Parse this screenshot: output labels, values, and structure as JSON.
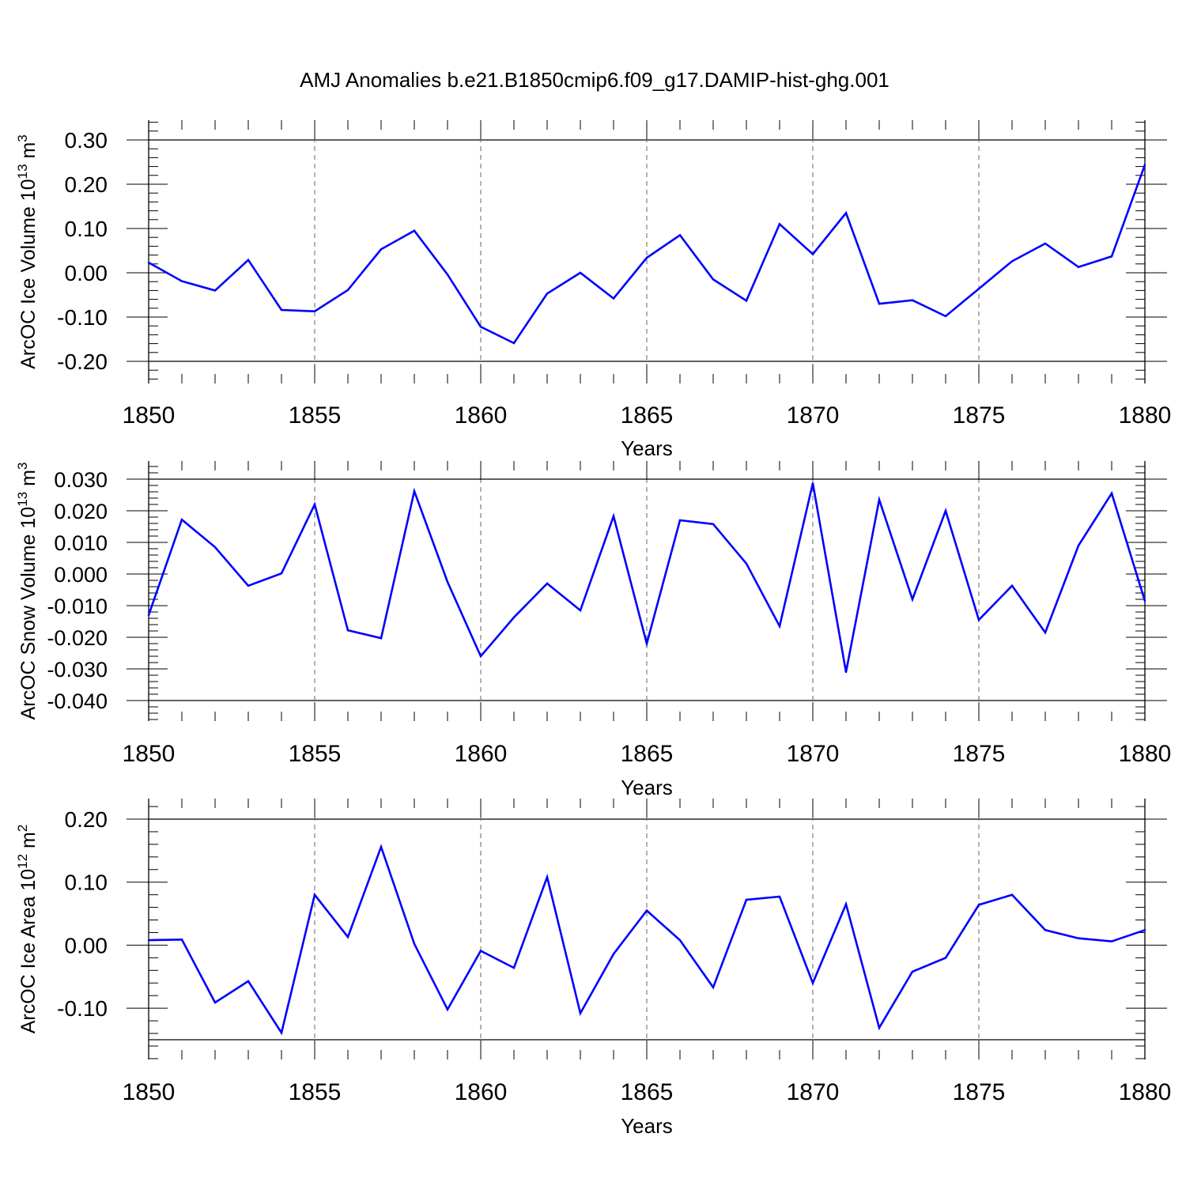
{
  "title": "AMJ Anomalies b.e21.B1850cmip6.f09_g17.DAMIP-hist-ghg.001",
  "line_color": "#0000ff",
  "chart_data": [
    {
      "type": "line",
      "ylabel": "ArcOC Ice Volume 10",
      "ylabel_exp": "13",
      "ylabel_unit": " m",
      "ylabel_unit_exp": "3",
      "xlabel": "Years",
      "xlim": [
        1850,
        1880
      ],
      "ylim": [
        -0.2,
        0.3
      ],
      "yticks": [
        -0.2,
        -0.1,
        0.0,
        0.1,
        0.2,
        0.3
      ],
      "ytick_labels": [
        "-0.20",
        "-0.10",
        "0.00",
        "0.10",
        "0.20",
        "0.30"
      ],
      "xticks": [
        1850,
        1855,
        1860,
        1865,
        1870,
        1875,
        1880
      ],
      "xtick_labels": [
        "1850",
        "1855",
        "1860",
        "1865",
        "1870",
        "1875",
        "1880"
      ],
      "x": [
        1850,
        1851,
        1852,
        1853,
        1854,
        1855,
        1856,
        1857,
        1858,
        1859,
        1860,
        1861,
        1862,
        1863,
        1864,
        1865,
        1866,
        1867,
        1868,
        1869,
        1870,
        1871,
        1872,
        1873,
        1874,
        1875,
        1876,
        1877,
        1878,
        1879,
        1880
      ],
      "values": [
        0.023,
        -0.019,
        -0.04,
        0.029,
        -0.084,
        -0.087,
        -0.039,
        0.053,
        0.095,
        -0.004,
        -0.122,
        -0.159,
        -0.047,
        0.0,
        -0.058,
        0.034,
        0.085,
        -0.015,
        -0.063,
        0.11,
        0.042,
        0.135,
        -0.07,
        -0.062,
        -0.098,
        -0.036,
        0.026,
        0.066,
        0.013,
        0.037,
        0.244
      ]
    },
    {
      "type": "line",
      "ylabel": "ArcOC Snow Volume 10",
      "ylabel_exp": "13",
      "ylabel_unit": " m",
      "ylabel_unit_exp": "3",
      "xlabel": "Years",
      "xlim": [
        1850,
        1880
      ],
      "ylim": [
        -0.04,
        0.03
      ],
      "yticks": [
        -0.04,
        -0.03,
        -0.02,
        -0.01,
        0.0,
        0.01,
        0.02,
        0.03
      ],
      "ytick_labels": [
        "-0.040",
        "-0.030",
        "-0.020",
        "-0.010",
        "0.000",
        "0.010",
        "0.020",
        "0.030"
      ],
      "xticks": [
        1850,
        1855,
        1860,
        1865,
        1870,
        1875,
        1880
      ],
      "xtick_labels": [
        "1850",
        "1855",
        "1860",
        "1865",
        "1870",
        "1875",
        "1880"
      ],
      "x": [
        1850,
        1851,
        1852,
        1853,
        1854,
        1855,
        1856,
        1857,
        1858,
        1859,
        1860,
        1861,
        1862,
        1863,
        1864,
        1865,
        1866,
        1867,
        1868,
        1869,
        1870,
        1871,
        1872,
        1873,
        1874,
        1875,
        1876,
        1877,
        1878,
        1879,
        1880
      ],
      "values": [
        -0.013,
        0.0172,
        0.0085,
        -0.0037,
        0.0002,
        0.022,
        -0.0178,
        -0.0203,
        0.0262,
        -0.0025,
        -0.026,
        -0.0137,
        -0.003,
        -0.0115,
        0.0183,
        -0.022,
        0.017,
        0.0158,
        0.0033,
        -0.0165,
        0.0287,
        -0.031,
        0.0235,
        -0.008,
        0.02,
        -0.0145,
        -0.0037,
        -0.0185,
        0.009,
        0.0255,
        -0.0085
      ]
    },
    {
      "type": "line",
      "ylabel": "ArcOC Ice Area 10",
      "ylabel_exp": "12",
      "ylabel_unit": " m",
      "ylabel_unit_exp": "2",
      "xlabel": "Years",
      "xlim": [
        1850,
        1880
      ],
      "ylim": [
        -0.15,
        0.2
      ],
      "yticks": [
        -0.1,
        0.0,
        0.1,
        0.2
      ],
      "ytick_labels": [
        "-0.10",
        "0.00",
        "0.10",
        "0.20"
      ],
      "xticks": [
        1850,
        1855,
        1860,
        1865,
        1870,
        1875,
        1880
      ],
      "xtick_labels": [
        "1850",
        "1855",
        "1860",
        "1865",
        "1870",
        "1875",
        "1880"
      ],
      "x": [
        1850,
        1851,
        1852,
        1853,
        1854,
        1855,
        1856,
        1857,
        1858,
        1859,
        1860,
        1861,
        1862,
        1863,
        1864,
        1865,
        1866,
        1867,
        1868,
        1869,
        1870,
        1871,
        1872,
        1873,
        1874,
        1875,
        1876,
        1877,
        1878,
        1879,
        1880
      ],
      "values": [
        0.008,
        0.009,
        -0.091,
        -0.057,
        -0.139,
        0.08,
        0.013,
        0.156,
        0.002,
        -0.102,
        -0.009,
        -0.036,
        0.108,
        -0.108,
        -0.014,
        0.055,
        0.008,
        -0.067,
        0.072,
        0.077,
        -0.06,
        0.065,
        -0.131,
        -0.042,
        -0.02,
        0.064,
        0.08,
        0.024,
        0.011,
        0.006,
        0.024
      ]
    }
  ]
}
